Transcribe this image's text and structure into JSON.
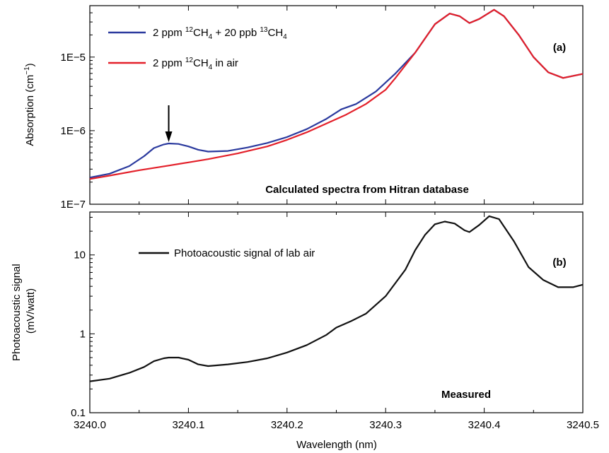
{
  "chart_data": [
    {
      "type": "line",
      "panel_label": "(a)",
      "annotation": "Calculated spectra from Hitran database",
      "ylabel": "Absorption (cm",
      "ylabel_sup": "−1",
      "ylabel_end": ")",
      "y_scale": "log",
      "ylim": [
        1e-07,
        5e-05
      ],
      "xlim": [
        3240.0,
        3240.5
      ],
      "y_ticks": [
        1e-07,
        1e-06,
        1e-05
      ],
      "y_tick_labels": [
        "1E−7",
        "1E−6",
        "1E−5"
      ],
      "arrow_at_x": 3240.08,
      "legend_position": "top-left",
      "series": [
        {
          "name": "2 ppm 12CH4 + 20 ppb 13CH4",
          "legend": {
            "a": "2 ppm ",
            "b": "12",
            "c": "CH",
            "d": "4",
            "e": " + 20 ppb ",
            "f": "13",
            "g": "CH",
            "h": "4"
          },
          "color": "#2b3a9e",
          "x": [
            3240.0,
            3240.02,
            3240.04,
            3240.055,
            3240.065,
            3240.075,
            3240.08,
            3240.09,
            3240.1,
            3240.11,
            3240.12,
            3240.14,
            3240.16,
            3240.18,
            3240.2,
            3240.22,
            3240.24,
            3240.255,
            3240.27,
            3240.29,
            3240.31,
            3240.33,
            3240.34,
            3240.35,
            3240.365,
            3240.375,
            3240.385,
            3240.395,
            3240.41,
            3240.42,
            3240.435,
            3240.45,
            3240.465,
            3240.48,
            3240.5
          ],
          "y": [
            2.3e-07,
            2.6e-07,
            3.3e-07,
            4.5e-07,
            5.8e-07,
            6.5e-07,
            6.7e-07,
            6.6e-07,
            6.1e-07,
            5.5e-07,
            5.2e-07,
            5.3e-07,
            5.9e-07,
            6.8e-07,
            8.2e-07,
            1.05e-06,
            1.45e-06,
            1.95e-06,
            2.3e-06,
            3.4e-06,
            6e-06,
            1.15e-05,
            1.8e-05,
            2.8e-05,
            3.9e-05,
            3.6e-05,
            2.9e-05,
            3.3e-05,
            4.4e-05,
            3.6e-05,
            2e-05,
            1e-05,
            6.2e-06,
            5.2e-06,
            5.9e-06
          ]
        },
        {
          "name": "2 ppm 12CH4 in air",
          "legend": {
            "a": "2 ppm ",
            "b": "12",
            "c": "CH",
            "d": "4",
            "e": " in air"
          },
          "color": "#e3202a",
          "x": [
            3240.0,
            3240.02,
            3240.05,
            3240.08,
            3240.1,
            3240.12,
            3240.15,
            3240.18,
            3240.2,
            3240.22,
            3240.24,
            3240.26,
            3240.28,
            3240.3,
            3240.31,
            3240.33,
            3240.34,
            3240.35,
            3240.365,
            3240.375,
            3240.385,
            3240.395,
            3240.41,
            3240.42,
            3240.435,
            3240.45,
            3240.465,
            3240.48,
            3240.5
          ],
          "y": [
            2.2e-07,
            2.45e-07,
            2.9e-07,
            3.35e-07,
            3.7e-07,
            4.1e-07,
            4.9e-07,
            6.1e-07,
            7.5e-07,
            9.5e-07,
            1.25e-06,
            1.65e-06,
            2.3e-06,
            3.6e-06,
            5.2e-06,
            1.15e-05,
            1.8e-05,
            2.8e-05,
            3.9e-05,
            3.6e-05,
            2.9e-05,
            3.3e-05,
            4.4e-05,
            3.6e-05,
            2e-05,
            1e-05,
            6.2e-06,
            5.2e-06,
            5.9e-06
          ]
        }
      ]
    },
    {
      "type": "line",
      "panel_label": "(b)",
      "annotation": "Measured",
      "ylabel_line1": "Photoacoustic signal",
      "ylabel_line2": "(mV/watt)",
      "xlabel": "Wavelength (nm)",
      "y_scale": "log",
      "ylim": [
        0.1,
        35
      ],
      "xlim": [
        3240.0,
        3240.5
      ],
      "y_ticks": [
        0.1,
        1,
        10
      ],
      "y_tick_labels": [
        "0.1",
        "1",
        "10"
      ],
      "x_ticks": [
        3240.0,
        3240.1,
        3240.2,
        3240.3,
        3240.4,
        3240.5
      ],
      "x_tick_labels": [
        "3240.0",
        "3240.1",
        "3240.2",
        "3240.3",
        "3240.4",
        "3240.5"
      ],
      "legend_position": "top-left",
      "series": [
        {
          "name": "Photoacoustic signal of lab air",
          "color": "#111111",
          "x": [
            3240.0,
            3240.02,
            3240.04,
            3240.055,
            3240.065,
            3240.075,
            3240.08,
            3240.09,
            3240.1,
            3240.11,
            3240.12,
            3240.14,
            3240.16,
            3240.18,
            3240.2,
            3240.22,
            3240.24,
            3240.25,
            3240.265,
            3240.28,
            3240.3,
            3240.32,
            3240.33,
            3240.34,
            3240.35,
            3240.36,
            3240.37,
            3240.38,
            3240.385,
            3240.395,
            3240.405,
            3240.415,
            3240.43,
            3240.445,
            3240.46,
            3240.475,
            3240.49,
            3240.5
          ],
          "y": [
            0.25,
            0.27,
            0.32,
            0.38,
            0.45,
            0.49,
            0.5,
            0.5,
            0.47,
            0.41,
            0.39,
            0.41,
            0.44,
            0.49,
            0.58,
            0.72,
            0.97,
            1.2,
            1.45,
            1.8,
            3.0,
            6.5,
            11.5,
            18.0,
            24.5,
            26.5,
            25.0,
            20.5,
            19.5,
            24.0,
            31.0,
            28.5,
            15.0,
            7.0,
            4.8,
            3.9,
            3.9,
            4.2
          ]
        }
      ]
    }
  ]
}
